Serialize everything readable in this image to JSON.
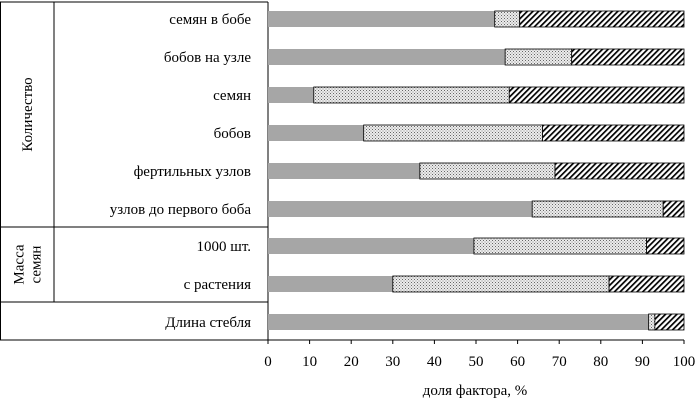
{
  "chart_data": {
    "type": "bar",
    "orientation": "horizontal",
    "stacked": true,
    "title": "",
    "xlabel": "доля фактора, %",
    "ylabel": "",
    "xlim": [
      0,
      100
    ],
    "x_ticks": [
      "0",
      "10",
      "20",
      "30",
      "40",
      "50",
      "60",
      "70",
      "80",
      "90",
      "100"
    ],
    "grid": false,
    "legend": "none",
    "groups": [
      {
        "label": "Количество",
        "categories": [
          "семян в бобе",
          "бобов на узле",
          "семян",
          "бобов",
          "фертильных узлов",
          "узлов до первого боба"
        ]
      },
      {
        "label": "Масса семян",
        "label_lines": [
          "Масса",
          "семян"
        ],
        "categories": [
          "1000 шт.",
          "с растения"
        ]
      },
      {
        "label": "",
        "categories": [
          "Длина стебля"
        ]
      }
    ],
    "categories": [
      "семян в бобе",
      "бобов на узле",
      "семян",
      "бобов",
      "фертильных узлов",
      "узлов до первого боба",
      "1000 шт.",
      "с растения",
      "Длина стебля"
    ],
    "series": [
      {
        "fill": "solid-gray",
        "color": "#a6a6a6",
        "values": [
          54.5,
          57,
          11,
          23,
          36.5,
          63.5,
          49.5,
          30,
          91.5
        ]
      },
      {
        "fill": "dotted",
        "color": "#d0d0d0",
        "values": [
          6,
          16,
          47,
          43,
          32.5,
          31.5,
          41.5,
          52,
          1.5
        ]
      },
      {
        "fill": "diagonal-hatch",
        "color": "#000000",
        "values": [
          39.5,
          27,
          42,
          34,
          31,
          5,
          9,
          18,
          7
        ]
      }
    ]
  }
}
